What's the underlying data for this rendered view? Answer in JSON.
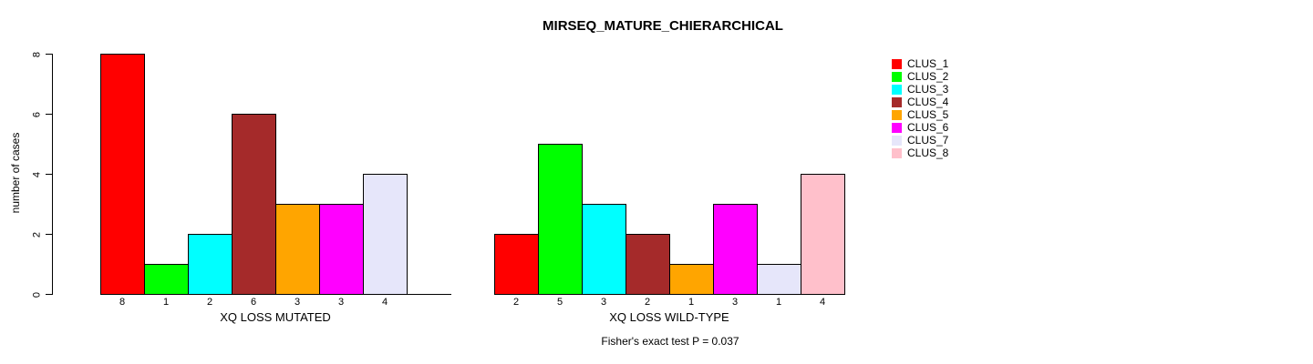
{
  "chart_data": {
    "type": "bar",
    "title": "MIRSEQ_MATURE_CHIERARCHICAL",
    "ylabel": "number of cases",
    "ylim": [
      0,
      8
    ],
    "yticks": [
      0,
      2,
      4,
      6,
      8
    ],
    "grid": false,
    "legend_position": "right-outside",
    "legend": [
      {
        "label": "CLUS_1",
        "color": "#FF0000"
      },
      {
        "label": "CLUS_2",
        "color": "#00FF00"
      },
      {
        "label": "CLUS_3",
        "color": "#00FFFF"
      },
      {
        "label": "CLUS_4",
        "color": "#A52A2A"
      },
      {
        "label": "CLUS_5",
        "color": "#FFA500"
      },
      {
        "label": "CLUS_6",
        "color": "#FF00FF"
      },
      {
        "label": "CLUS_7",
        "color": "#E6E6FA"
      },
      {
        "label": "CLUS_8",
        "color": "#FFC0CB"
      }
    ],
    "groups": [
      {
        "xlabel": "XQ LOSS MUTATED",
        "values": [
          8,
          1,
          2,
          6,
          3,
          3,
          4,
          0
        ],
        "bar_labels": [
          "8",
          "1",
          "2",
          "6",
          "3",
          "3",
          "4",
          ""
        ]
      },
      {
        "xlabel": "XQ LOSS WILD-TYPE",
        "values": [
          2,
          5,
          3,
          2,
          1,
          3,
          1,
          4
        ],
        "bar_labels": [
          "2",
          "5",
          "3",
          "2",
          "1",
          "3",
          "1",
          "4"
        ]
      }
    ],
    "annotation": "Fisher's exact test P = 0.037"
  }
}
